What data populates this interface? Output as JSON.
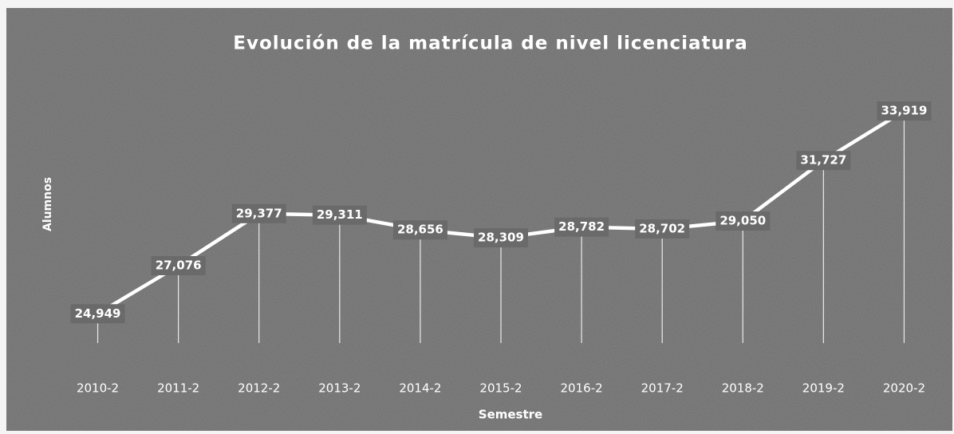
{
  "chart_data": {
    "type": "line",
    "title": "Evolución de la matrícula de nivel licenciatura",
    "x_label": "Semestre",
    "y_label": "Alumnos",
    "categories": [
      "2010-2",
      "2011-2",
      "2012-2",
      "2013-2",
      "2014-2",
      "2015-2",
      "2016-2",
      "2017-2",
      "2018-2",
      "2019-2",
      "2020-2"
    ],
    "series": [
      {
        "name": "Alumnos",
        "color": "#ffffff",
        "values": [
          24949,
          27076,
          29377,
          29311,
          28656,
          28309,
          28782,
          28702,
          29050,
          31727,
          33919
        ],
        "value_labels": [
          "24,949",
          "27,076",
          "29,377",
          "29,311",
          "28,656",
          "28,309",
          "28,782",
          "28,702",
          "29,050",
          "31,727",
          "33,919"
        ]
      }
    ],
    "ylim": [
      23300,
      35300
    ],
    "drop_lines": true
  }
}
